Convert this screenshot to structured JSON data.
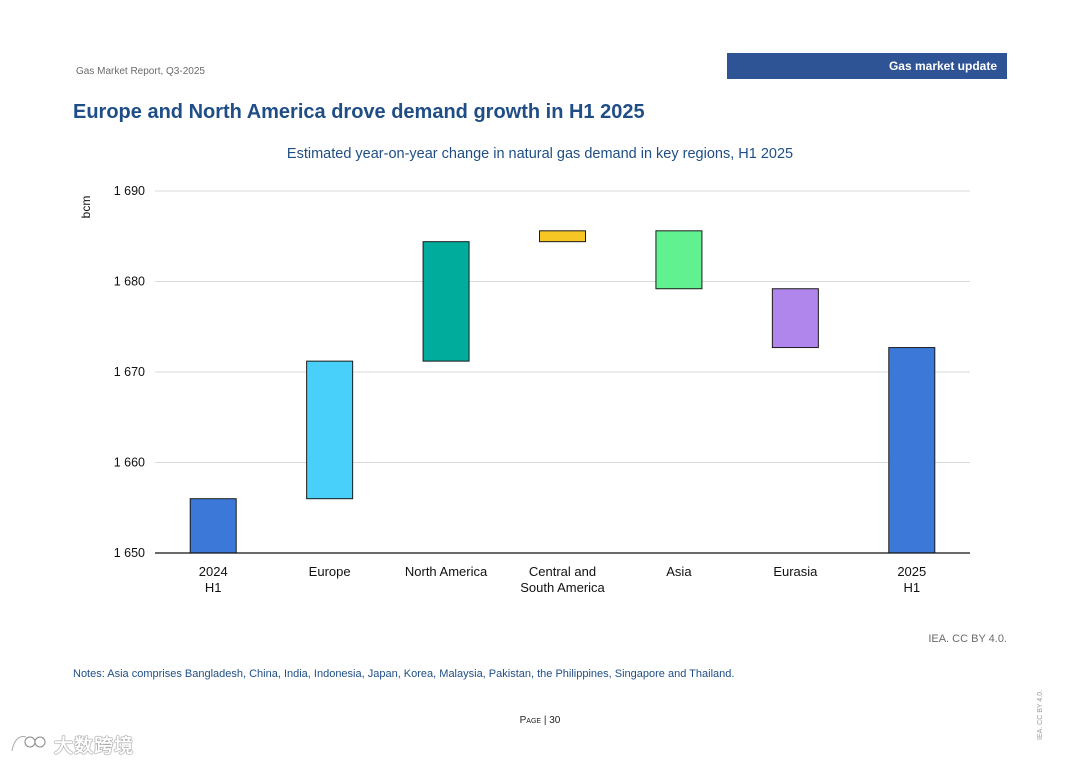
{
  "header": {
    "report_label": "Gas Market Report, Q3-2025",
    "section_banner": "Gas market update"
  },
  "page_title": "Europe and North America drove demand growth in H1 2025",
  "chart_data": {
    "type": "waterfall",
    "title": "Estimated year-on-year change in natural gas demand in key regions, H1 2025",
    "ylabel": "bcm",
    "ylim": [
      1650,
      1690
    ],
    "yticks": [
      1650,
      1660,
      1670,
      1680,
      1690
    ],
    "ytick_labels": [
      "1 650",
      "1 660",
      "1 670",
      "1 680",
      "1 690"
    ],
    "grid": true,
    "categories": [
      {
        "label": [
          "2024",
          "H1"
        ],
        "kind": "total",
        "start": 1650,
        "end": 1656.0,
        "color": "#3c78d8"
      },
      {
        "label": [
          "Europe"
        ],
        "kind": "change",
        "start": 1656.0,
        "end": 1671.2,
        "color": "#48d0fb"
      },
      {
        "label": [
          "North America"
        ],
        "kind": "change",
        "start": 1671.2,
        "end": 1684.4,
        "color": "#00ac9c"
      },
      {
        "label": [
          "Central and",
          "South America"
        ],
        "kind": "change",
        "start": 1684.4,
        "end": 1685.6,
        "color": "#f6c624"
      },
      {
        "label": [
          "Asia"
        ],
        "kind": "change",
        "start": 1685.6,
        "end": 1679.2,
        "color": "#62f191"
      },
      {
        "label": [
          "Eurasia"
        ],
        "kind": "change",
        "start": 1679.2,
        "end": 1672.7,
        "color": "#b085ec"
      },
      {
        "label": [
          "2025",
          "H1"
        ],
        "kind": "total",
        "start": 1650,
        "end": 1672.7,
        "color": "#3c78d8"
      }
    ]
  },
  "source": "IEA. CC BY 4.0.",
  "notes": "Notes: Asia comprises Bangladesh, China, India, Indonesia, Japan, Korea, Malaysia, Pakistan, the Philippines, Singapore and Thailand.",
  "footer": {
    "page_word": "Page",
    "page_number": "| 30",
    "side_license": "IEA. CC BY 4.0."
  },
  "watermark": {
    "text": "大数跨境",
    "icon": "eye-logo-icon"
  }
}
